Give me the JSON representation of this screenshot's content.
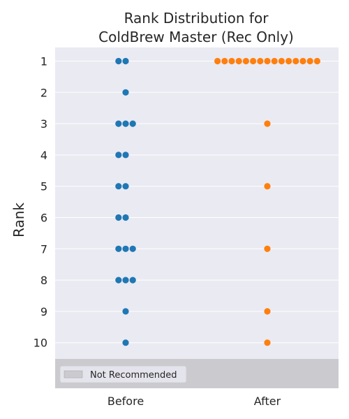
{
  "chart_data": {
    "type": "scatter",
    "subtype": "swarm",
    "title_lines": [
      "Rank Distribution for",
      "ColdBrew Master (Rec Only)"
    ],
    "ylabel": "Rank",
    "xlabel": "",
    "categories": [
      "Before",
      "After"
    ],
    "y_ticks": [
      1,
      2,
      3,
      4,
      5,
      6,
      7,
      8,
      9,
      10
    ],
    "y_inverted": true,
    "grid": true,
    "series": [
      {
        "category": "Before",
        "color": "#1f77b4",
        "points": [
          {
            "rank": 1,
            "count": 2
          },
          {
            "rank": 2,
            "count": 1
          },
          {
            "rank": 3,
            "count": 3
          },
          {
            "rank": 4,
            "count": 2
          },
          {
            "rank": 5,
            "count": 2
          },
          {
            "rank": 6,
            "count": 2
          },
          {
            "rank": 7,
            "count": 3
          },
          {
            "rank": 8,
            "count": 3
          },
          {
            "rank": 9,
            "count": 1
          },
          {
            "rank": 10,
            "count": 1
          }
        ]
      },
      {
        "category": "After",
        "color": "#ff7f0e",
        "points": [
          {
            "rank": 1,
            "count": 15
          },
          {
            "rank": 3,
            "count": 1
          },
          {
            "rank": 5,
            "count": 1
          },
          {
            "rank": 7,
            "count": 1
          },
          {
            "rank": 9,
            "count": 1
          },
          {
            "rank": 10,
            "count": 1
          }
        ]
      }
    ],
    "shaded_region": {
      "label": "Not Recommended",
      "color": "#cbcacf"
    },
    "legend": {
      "entries": [
        "Not Recommended"
      ],
      "position": "lower-left"
    },
    "background_color": "#eaeaf2"
  }
}
